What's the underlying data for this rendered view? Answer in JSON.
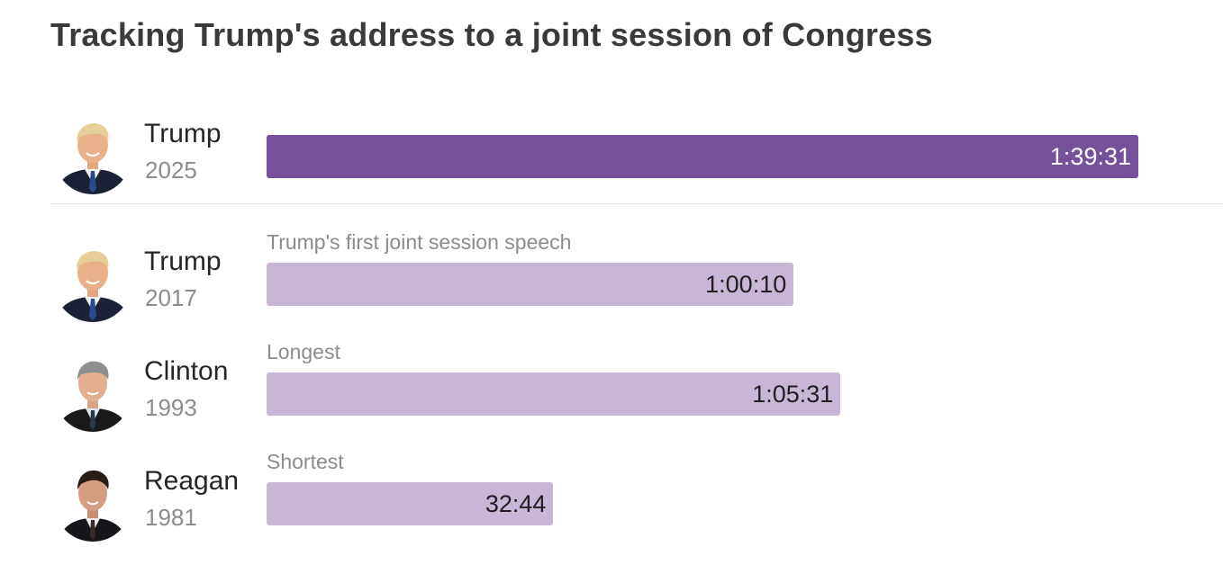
{
  "title": "Tracking Trump's address to a joint session of Congress",
  "colors": {
    "highlight": "#75519b",
    "muted": "#c9b5d6",
    "highlight_text": "#ffffff",
    "muted_text": "#1f1f1f",
    "divider": "#e4e4e4"
  },
  "chart_data": {
    "type": "bar",
    "orientation": "horizontal",
    "categories": [
      "Trump 2025",
      "Trump 2017",
      "Clinton 1993",
      "Reagan 1981"
    ],
    "values_seconds": [
      5971,
      3610,
      3931,
      1964
    ],
    "rows": [
      {
        "name": "Trump",
        "year": "2025",
        "note": "",
        "duration": "1:39:31",
        "seconds": 5971,
        "highlight": true,
        "portrait": "trump-portrait"
      },
      {
        "name": "Trump",
        "year": "2017",
        "note": "Trump's first joint session speech",
        "duration": "1:00:10",
        "seconds": 3610,
        "highlight": false,
        "portrait": "trump-portrait"
      },
      {
        "name": "Clinton",
        "year": "1993",
        "note": "Longest",
        "duration": "1:05:31",
        "seconds": 3931,
        "highlight": false,
        "portrait": "clinton-portrait"
      },
      {
        "name": "Reagan",
        "year": "1981",
        "note": "Shortest",
        "duration": "32:44",
        "seconds": 1964,
        "highlight": false,
        "portrait": "reagan-portrait"
      }
    ]
  }
}
